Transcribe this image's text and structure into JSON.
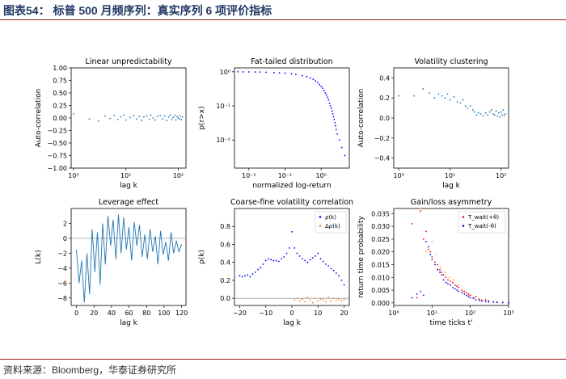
{
  "header": {
    "title": "图表54：  标普 500 月频序列：真实序列 6 项评价指标"
  },
  "footer": {
    "source": "资料来源：Bloomberg，华泰证券研究所"
  },
  "chart_data": [
    {
      "type": "scatter",
      "title": "Linear unpredictability",
      "xlabel": "lag k",
      "ylabel": "Auto-correlation",
      "xscale": "log",
      "xlim": [
        0.9,
        140
      ],
      "ylim": [
        -1.0,
        1.0
      ],
      "xticks": [
        {
          "v": 1,
          "label": "10⁰"
        },
        {
          "v": 10,
          "label": "10¹"
        },
        {
          "v": 100,
          "label": "10²"
        }
      ],
      "yticks": [
        {
          "v": -1,
          "label": "−1.00"
        },
        {
          "v": -0.75,
          "label": "−0.75"
        },
        {
          "v": -0.5,
          "label": "−0.50"
        },
        {
          "v": -0.25,
          "label": "−0.25"
        },
        {
          "v": 0,
          "label": "0.00"
        },
        {
          "v": 0.25,
          "label": "0.25"
        },
        {
          "v": 0.5,
          "label": "0.50"
        },
        {
          "v": 0.75,
          "label": "0.75"
        },
        {
          "v": 1,
          "label": "1.00"
        }
      ],
      "color": "#1f77b4",
      "x": [
        1,
        2,
        3,
        4,
        5,
        6,
        7,
        8,
        9,
        10,
        12,
        14,
        16,
        18,
        20,
        22,
        25,
        28,
        30,
        33,
        36,
        40,
        45,
        50,
        55,
        60,
        65,
        70,
        75,
        80,
        85,
        90,
        95,
        100,
        105,
        110,
        115,
        120
      ],
      "y": [
        0.08,
        -0.02,
        -0.06,
        0.04,
        -0.01,
        0.05,
        -0.03,
        0.02,
        0.06,
        -0.04,
        0.01,
        0.05,
        -0.02,
        0.03,
        -0.05,
        0.02,
        0.04,
        -0.03,
        0.06,
        0.0,
        -0.04,
        0.03,
        0.05,
        -0.02,
        0.04,
        -0.05,
        0.02,
        0.06,
        -0.03,
        0.01,
        0.05,
        -0.04,
        0.03,
        0.0,
        -0.02,
        0.04,
        -0.03,
        0.02
      ]
    },
    {
      "type": "scatter",
      "title": "Fat-tailed distribution",
      "xlabel": "normalized log-return",
      "ylabel": "p(r>x)",
      "xscale": "log",
      "yscale": "log",
      "xlim": [
        0.004,
        6
      ],
      "ylim": [
        0.0015,
        1.3
      ],
      "xticks": [
        {
          "v": 0.01,
          "label": "10⁻²"
        },
        {
          "v": 0.1,
          "label": "10⁻¹"
        },
        {
          "v": 1,
          "label": "10⁰"
        }
      ],
      "yticks": [
        {
          "v": 0.01,
          "label": "10⁻²"
        },
        {
          "v": 0.1,
          "label": "10⁻¹"
        },
        {
          "v": 1,
          "label": "10⁰"
        }
      ],
      "color": "#0000ff",
      "x": [
        0.005,
        0.007,
        0.01,
        0.015,
        0.02,
        0.03,
        0.05,
        0.07,
        0.1,
        0.15,
        0.2,
        0.3,
        0.4,
        0.5,
        0.6,
        0.7,
        0.8,
        0.9,
        1.0,
        1.1,
        1.2,
        1.3,
        1.4,
        1.5,
        1.6,
        1.7,
        1.8,
        1.9,
        2.0,
        2.1,
        2.2,
        2.3,
        2.4,
        2.5,
        2.6,
        2.8,
        3.2,
        3.7,
        4.5
      ],
      "y": [
        0.995,
        0.993,
        0.99,
        0.985,
        0.98,
        0.97,
        0.95,
        0.93,
        0.91,
        0.87,
        0.83,
        0.77,
        0.72,
        0.66,
        0.6,
        0.54,
        0.48,
        0.42,
        0.37,
        0.33,
        0.28,
        0.24,
        0.21,
        0.18,
        0.15,
        0.12,
        0.1,
        0.085,
        0.07,
        0.058,
        0.048,
        0.04,
        0.032,
        0.026,
        0.02,
        0.015,
        0.01,
        0.006,
        0.0035
      ]
    },
    {
      "type": "scatter",
      "title": "Volatility clustering",
      "xlabel": "lag k",
      "ylabel": "Auto-correlation",
      "xscale": "log",
      "xlim": [
        0.8,
        140
      ],
      "ylim": [
        -0.5,
        0.5
      ],
      "xticks": [
        {
          "v": 1,
          "label": "10⁰"
        },
        {
          "v": 10,
          "label": "10¹"
        },
        {
          "v": 100,
          "label": "10²"
        }
      ],
      "yticks": [
        {
          "v": -0.4,
          "label": "−0.4"
        },
        {
          "v": -0.2,
          "label": "−0.2"
        },
        {
          "v": 0,
          "label": "0.0"
        },
        {
          "v": 0.2,
          "label": "0.2"
        },
        {
          "v": 0.4,
          "label": "0.4"
        }
      ],
      "color": "#1f77b4",
      "x": [
        1,
        2,
        3,
        4,
        5,
        6,
        7,
        8,
        9,
        10,
        12,
        14,
        16,
        18,
        20,
        22,
        25,
        28,
        30,
        33,
        36,
        40,
        45,
        50,
        55,
        60,
        65,
        70,
        75,
        80,
        85,
        90,
        95,
        100,
        105,
        110,
        115,
        120
      ],
      "y": [
        0.22,
        0.22,
        0.29,
        0.25,
        0.2,
        0.24,
        0.22,
        0.2,
        0.24,
        0.18,
        0.21,
        0.16,
        0.15,
        0.18,
        0.12,
        0.1,
        0.12,
        0.08,
        0.06,
        0.03,
        0.05,
        0.04,
        0.02,
        0.05,
        0.03,
        0.06,
        0.08,
        0.04,
        0.03,
        0.07,
        0.02,
        0.05,
        0.01,
        0.06,
        0.03,
        0.08,
        0.02,
        0.04
      ]
    },
    {
      "type": "line",
      "title": "Leverage effect",
      "xlabel": "lag k",
      "ylabel": "L(k)",
      "xlim": [
        -6,
        125
      ],
      "ylim": [
        -9,
        4
      ],
      "xticks": [
        {
          "v": 0,
          "label": "0"
        },
        {
          "v": 20,
          "label": "20"
        },
        {
          "v": 40,
          "label": "40"
        },
        {
          "v": 60,
          "label": "60"
        },
        {
          "v": 80,
          "label": "80"
        },
        {
          "v": 100,
          "label": "100"
        },
        {
          "v": 120,
          "label": "120"
        }
      ],
      "yticks": [
        {
          "v": -8,
          "label": "−8"
        },
        {
          "v": -6,
          "label": "−6"
        },
        {
          "v": -4,
          "label": "−4"
        },
        {
          "v": -2,
          "label": "−2"
        },
        {
          "v": 0,
          "label": "0"
        },
        {
          "v": 2,
          "label": "2"
        }
      ],
      "color": "#1f77b4",
      "x": [
        0,
        3,
        6,
        9,
        12,
        15,
        18,
        21,
        24,
        27,
        30,
        33,
        36,
        39,
        42,
        45,
        48,
        51,
        54,
        57,
        60,
        63,
        66,
        69,
        72,
        75,
        78,
        81,
        84,
        87,
        90,
        93,
        96,
        99,
        102,
        105,
        108,
        111,
        114,
        117,
        120
      ],
      "y": [
        -1.5,
        -6.0,
        -3.0,
        -8.6,
        -2.0,
        -7.5,
        1.2,
        -4.5,
        0.8,
        -6.2,
        2.0,
        -3.5,
        3.0,
        -1.0,
        2.5,
        -2.8,
        3.2,
        -2.0,
        2.8,
        -1.5,
        1.5,
        -3.0,
        2.2,
        -1.0,
        1.8,
        -2.5,
        0.5,
        -2.8,
        1.2,
        -1.8,
        0.3,
        -3.5,
        1.0,
        -2.2,
        -0.5,
        -3.0,
        0.8,
        -2.0,
        -0.3,
        -1.8,
        -0.8
      ]
    },
    {
      "type": "scatter",
      "title": "Coarse-fine volatility correlation",
      "xlabel": "lag k",
      "ylabel": "ρ(k)",
      "xlim": [
        -22,
        22
      ],
      "ylim": [
        -0.08,
        1.0
      ],
      "xticks": [
        {
          "v": -20,
          "label": "−20"
        },
        {
          "v": -10,
          "label": "−10"
        },
        {
          "v": 0,
          "label": "0"
        },
        {
          "v": 10,
          "label": "10"
        },
        {
          "v": 20,
          "label": "20"
        }
      ],
      "yticks": [
        {
          "v": 0,
          "label": "0.0"
        },
        {
          "v": 0.2,
          "label": "0.2"
        },
        {
          "v": 0.4,
          "label": "0.4"
        },
        {
          "v": 0.6,
          "label": "0.6"
        },
        {
          "v": 0.8,
          "label": "0.8"
        }
      ],
      "legend": "top-right",
      "series": [
        {
          "name": "ρ(k)",
          "color": "#0000ff",
          "x": [
            -20,
            -19,
            -18,
            -17,
            -16,
            -15,
            -14,
            -13,
            -12,
            -11,
            -10,
            -9,
            -8,
            -7,
            -6,
            -5,
            -4,
            -3,
            -2,
            -1,
            0,
            1,
            2,
            3,
            4,
            5,
            6,
            7,
            8,
            9,
            10,
            11,
            12,
            13,
            14,
            15,
            16,
            17,
            18,
            19,
            20
          ],
          "y": [
            0.25,
            0.24,
            0.25,
            0.26,
            0.24,
            0.27,
            0.29,
            0.32,
            0.34,
            0.38,
            0.42,
            0.44,
            0.43,
            0.42,
            0.42,
            0.41,
            0.44,
            0.46,
            0.5,
            0.56,
            0.74,
            0.56,
            0.5,
            0.47,
            0.44,
            0.42,
            0.4,
            0.43,
            0.45,
            0.47,
            0.5,
            0.44,
            0.41,
            0.38,
            0.36,
            0.33,
            0.31,
            0.28,
            0.25,
            0.2,
            0.15
          ]
        },
        {
          "name": "Δρ(k)",
          "color": "#ff7f0e",
          "x": [
            1,
            2,
            3,
            4,
            5,
            6,
            7,
            8,
            9,
            10,
            11,
            12,
            13,
            14,
            15,
            16,
            17,
            18,
            19,
            20
          ],
          "y": [
            -0.02,
            0.0,
            -0.03,
            -0.01,
            -0.04,
            0.01,
            -0.02,
            -0.05,
            0.0,
            -0.03,
            -0.01,
            -0.02,
            -0.04,
            0.01,
            -0.03,
            0.0,
            -0.02,
            -0.01,
            -0.03,
            -0.02
          ]
        }
      ]
    },
    {
      "type": "scatter",
      "title": "Gain/loss asymmetry",
      "xlabel": "time ticks t'",
      "ylabel": "return time probability",
      "xscale": "log",
      "xlim": [
        1,
        1000
      ],
      "ylim": [
        -0.001,
        0.037
      ],
      "xticks": [
        {
          "v": 1,
          "label": "10⁰"
        },
        {
          "v": 10,
          "label": "10¹"
        },
        {
          "v": 100,
          "label": "10²"
        },
        {
          "v": 1000,
          "label": "10³"
        }
      ],
      "yticks": [
        {
          "v": 0,
          "label": "0.000"
        },
        {
          "v": 0.005,
          "label": "0.005"
        },
        {
          "v": 0.01,
          "label": "0.010"
        },
        {
          "v": 0.015,
          "label": "0.015"
        },
        {
          "v": 0.02,
          "label": "0.020"
        },
        {
          "v": 0.025,
          "label": "0.025"
        },
        {
          "v": 0.03,
          "label": "0.030"
        },
        {
          "v": 0.035,
          "label": "0.035"
        }
      ],
      "legend": "top-right",
      "series": [
        {
          "name": "T_wait(+θ)",
          "color": "#ff0000",
          "x": [
            3,
            4,
            5,
            6,
            7,
            8,
            9,
            10,
            12,
            14,
            16,
            18,
            20,
            23,
            26,
            30,
            35,
            40,
            45,
            50,
            60,
            70,
            80,
            90,
            100,
            120,
            140,
            170,
            200,
            250,
            300,
            400,
            500,
            700,
            1000
          ],
          "y": [
            0.031,
            0.002,
            0.036,
            0.025,
            0.028,
            0.021,
            0.02,
            0.018,
            0.016,
            0.015,
            0.013,
            0.012,
            0.011,
            0.01,
            0.009,
            0.0085,
            0.008,
            0.007,
            0.0065,
            0.006,
            0.005,
            0.0045,
            0.004,
            0.0035,
            0.003,
            0.002,
            0.0025,
            0.0015,
            0.001,
            0.0012,
            0.0008,
            0.0005,
            0.0004,
            0.0002,
            0.0001
          ]
        },
        {
          "name": "T_wait(-θ)",
          "color": "#0000ff",
          "x": [
            3,
            4,
            5,
            6,
            7,
            8,
            9,
            10,
            12,
            14,
            16,
            18,
            20,
            23,
            26,
            30,
            35,
            40,
            45,
            50,
            60,
            70,
            80,
            90,
            100,
            120,
            140,
            170,
            200,
            250,
            300,
            400,
            500,
            700,
            1000
          ],
          "y": [
            0.002,
            0.0035,
            0.0045,
            0.003,
            0.024,
            0.022,
            0.019,
            0.017,
            0.015,
            0.013,
            0.012,
            0.011,
            0.009,
            0.008,
            0.0075,
            0.007,
            0.006,
            0.0055,
            0.005,
            0.0045,
            0.004,
            0.0035,
            0.003,
            0.0025,
            0.002,
            0.0018,
            0.0012,
            0.001,
            0.0008,
            0.0005,
            0.0004,
            0.0003,
            0.0002,
            0.0001,
            0.0
          ]
        },
        {
          "name": "",
          "color": "#ffa500",
          "x": [
            5,
            7,
            10,
            13,
            17,
            22,
            28,
            36,
            48,
            65,
            90,
            130,
            180
          ],
          "y": [
            0.037,
            0.02,
            0.024,
            0.019,
            0.014,
            0.012,
            0.01,
            0.009,
            0.007,
            0.0045,
            0.003,
            0.002,
            0.001
          ]
        }
      ]
    }
  ]
}
